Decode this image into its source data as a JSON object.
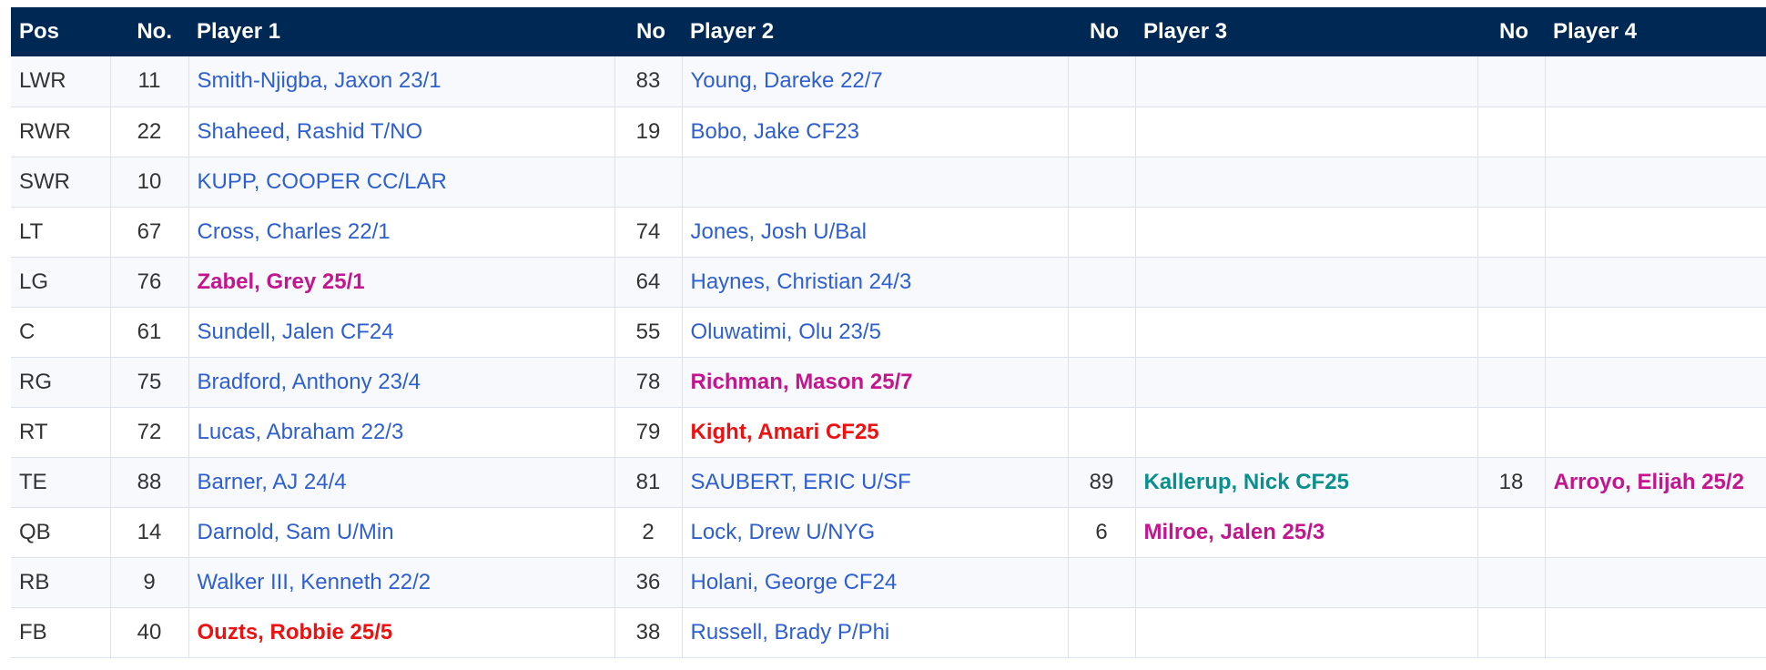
{
  "colors": {
    "header_bg": "#002855",
    "link": "#2e5fd0",
    "magenta": "#c4158f",
    "red": "#ee1111",
    "teal": "#0a8f8f"
  },
  "headers": [
    "Pos",
    "No.",
    "Player 1",
    "No",
    "Player 2",
    "No",
    "Player 3",
    "No",
    "Player 4"
  ],
  "rows": [
    {
      "pos": "LWR",
      "p1_no": "11",
      "p1": "Smith-Njigba, Jaxon 23/1",
      "p1_style": "link",
      "p2_no": "83",
      "p2": "Young, Dareke 22/7",
      "p2_style": "link",
      "p3_no": "",
      "p3": "",
      "p3_style": "link",
      "p4_no": "",
      "p4": "",
      "p4_style": "link"
    },
    {
      "pos": "RWR",
      "p1_no": "22",
      "p1": "Shaheed, Rashid T/NO",
      "p1_style": "link",
      "p2_no": "19",
      "p2": "Bobo, Jake CF23",
      "p2_style": "link",
      "p3_no": "",
      "p3": "",
      "p3_style": "link",
      "p4_no": "",
      "p4": "",
      "p4_style": "link"
    },
    {
      "pos": "SWR",
      "p1_no": "10",
      "p1": "KUPP, COOPER CC/LAR",
      "p1_style": "link",
      "p2_no": "",
      "p2": "",
      "p2_style": "link",
      "p3_no": "",
      "p3": "",
      "p3_style": "link",
      "p4_no": "",
      "p4": "",
      "p4_style": "link"
    },
    {
      "pos": "LT",
      "p1_no": "67",
      "p1": "Cross, Charles 22/1",
      "p1_style": "link",
      "p2_no": "74",
      "p2": "Jones, Josh U/Bal",
      "p2_style": "link",
      "p3_no": "",
      "p3": "",
      "p3_style": "link",
      "p4_no": "",
      "p4": "",
      "p4_style": "link"
    },
    {
      "pos": "LG",
      "p1_no": "76",
      "p1": "Zabel, Grey 25/1",
      "p1_style": "rookie-magenta",
      "p2_no": "64",
      "p2": "Haynes, Christian 24/3",
      "p2_style": "link",
      "p3_no": "",
      "p3": "",
      "p3_style": "link",
      "p4_no": "",
      "p4": "",
      "p4_style": "link"
    },
    {
      "pos": "C",
      "p1_no": "61",
      "p1": "Sundell, Jalen CF24",
      "p1_style": "link",
      "p2_no": "55",
      "p2": "Oluwatimi, Olu 23/5",
      "p2_style": "link",
      "p3_no": "",
      "p3": "",
      "p3_style": "link",
      "p4_no": "",
      "p4": "",
      "p4_style": "link"
    },
    {
      "pos": "RG",
      "p1_no": "75",
      "p1": "Bradford, Anthony 23/4",
      "p1_style": "link",
      "p2_no": "78",
      "p2": "Richman, Mason 25/7",
      "p2_style": "rookie-magenta",
      "p3_no": "",
      "p3": "",
      "p3_style": "link",
      "p4_no": "",
      "p4": "",
      "p4_style": "link"
    },
    {
      "pos": "RT",
      "p1_no": "72",
      "p1": "Lucas, Abraham 22/3",
      "p1_style": "link",
      "p2_no": "79",
      "p2": "Kight, Amari CF25",
      "p2_style": "rookie-red",
      "p3_no": "",
      "p3": "",
      "p3_style": "link",
      "p4_no": "",
      "p4": "",
      "p4_style": "link"
    },
    {
      "pos": "TE",
      "p1_no": "88",
      "p1": "Barner, AJ 24/4",
      "p1_style": "link",
      "p2_no": "81",
      "p2": "SAUBERT, ERIC U/SF",
      "p2_style": "link",
      "p3_no": "89",
      "p3": "Kallerup, Nick CF25",
      "p3_style": "rookie-teal",
      "p4_no": "18",
      "p4": "Arroyo, Elijah 25/2",
      "p4_style": "rookie-magenta"
    },
    {
      "pos": "QB",
      "p1_no": "14",
      "p1": "Darnold, Sam U/Min",
      "p1_style": "link",
      "p2_no": "2",
      "p2": "Lock, Drew U/NYG",
      "p2_style": "link",
      "p3_no": "6",
      "p3": "Milroe, Jalen 25/3",
      "p3_style": "rookie-magenta",
      "p4_no": "",
      "p4": "",
      "p4_style": "link"
    },
    {
      "pos": "RB",
      "p1_no": "9",
      "p1": "Walker III, Kenneth 22/2",
      "p1_style": "link",
      "p2_no": "36",
      "p2": "Holani, George CF24",
      "p2_style": "link",
      "p3_no": "",
      "p3": "",
      "p3_style": "link",
      "p4_no": "",
      "p4": "",
      "p4_style": "link"
    },
    {
      "pos": "FB",
      "p1_no": "40",
      "p1": "Ouzts, Robbie 25/5",
      "p1_style": "rookie-red",
      "p2_no": "38",
      "p2": "Russell, Brady P/Phi",
      "p2_style": "link",
      "p3_no": "",
      "p3": "",
      "p3_style": "link",
      "p4_no": "",
      "p4": "",
      "p4_style": "link"
    }
  ]
}
